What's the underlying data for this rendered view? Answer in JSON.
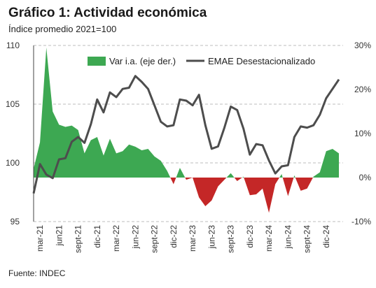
{
  "header": {
    "title": "Gráfico 1: Actividad económica",
    "subtitle": "Índice promedio 2021=100"
  },
  "footer": {
    "source": "Fuente: INDEC"
  },
  "colors": {
    "area_positive": "#3da852",
    "area_negative": "#c42727",
    "line": "#4d4d4d",
    "grid": "#bdbdbd"
  },
  "chart_data": {
    "type": "line",
    "legend_placement": "top",
    "grid": "horizontal dashed",
    "x_tick_labels": [
      "mar-21",
      "jun21",
      "sept-21",
      "dic-21",
      "mar-22",
      "jun-22",
      "sept-22",
      "dic-22",
      "mar-23",
      "jun-23",
      "sept-23",
      "dic-23",
      "mar-24",
      "jun-24",
      "sept-24",
      "dic-24"
    ],
    "x": [
      "feb-21",
      "mar-21",
      "abr-21",
      "may-21",
      "jun-21",
      "jul-21",
      "ago-21",
      "sept-21",
      "oct-21",
      "nov-21",
      "dic-21",
      "ene-22",
      "feb-22",
      "mar-22",
      "abr-22",
      "may-22",
      "jun-22",
      "jul-22",
      "ago-22",
      "sept-22",
      "oct-22",
      "nov-22",
      "dic-22",
      "ene-23",
      "feb-23",
      "mar-23",
      "abr-23",
      "may-23",
      "jun-23",
      "jul-23",
      "ago-23",
      "sept-23",
      "oct-23",
      "nov-23",
      "dic-23",
      "ene-24",
      "feb-24",
      "mar-24",
      "abr-24",
      "may-24",
      "jun-24",
      "jul-24",
      "ago-24",
      "sept-24",
      "oct-24",
      "nov-24",
      "dic-24",
      "ene-25",
      "feb-25"
    ],
    "left_axis": {
      "ylim": [
        95,
        110
      ],
      "ticks": [
        "95",
        "100",
        "105",
        "110"
      ]
    },
    "right_axis": {
      "ylim": [
        -10,
        30
      ],
      "ticks": [
        "-10%",
        "0%",
        "10%",
        "20%",
        "30%"
      ]
    },
    "series": [
      {
        "name": "Var i.a. (eje der.)",
        "type": "area",
        "axis": "right",
        "values": [
          2,
          8,
          29.5,
          15,
          12,
          11.5,
          11.8,
          10.8,
          5.5,
          8.5,
          9.2,
          5,
          8.8,
          5.5,
          6,
          7.5,
          7,
          6.2,
          6.5,
          4.8,
          3.8,
          1.5,
          -1.5,
          2.2,
          -0.5,
          0,
          -4.5,
          -6.5,
          -5.2,
          -2,
          -0.5,
          1,
          -0.8,
          0.2,
          -4,
          -3.8,
          -2.5,
          -8,
          -1.5,
          0.8,
          -4.2,
          0.5,
          -3,
          -2.5,
          0.2,
          1.2,
          6,
          6.5,
          5.5
        ]
      },
      {
        "name": "EMAE Desestacionalizado",
        "type": "line",
        "axis": "left",
        "values": [
          97.4,
          99.9,
          99.0,
          98.7,
          100.3,
          100.4,
          101.8,
          102.2,
          101.7,
          103.3,
          105.4,
          104.3,
          106.0,
          105.6,
          106.3,
          106.4,
          107.4,
          106.9,
          106.3,
          104.9,
          103.5,
          103.1,
          103.2,
          105.4,
          105.3,
          104.9,
          105.8,
          103.2,
          101.2,
          101.4,
          103.0,
          104.8,
          104.5,
          102.9,
          100.7,
          101.6,
          101.5,
          100.2,
          99.1,
          99.7,
          99.8,
          102.2,
          103.1,
          103.0,
          103.2,
          104.1,
          105.5,
          106.3,
          107.1
        ]
      }
    ]
  }
}
